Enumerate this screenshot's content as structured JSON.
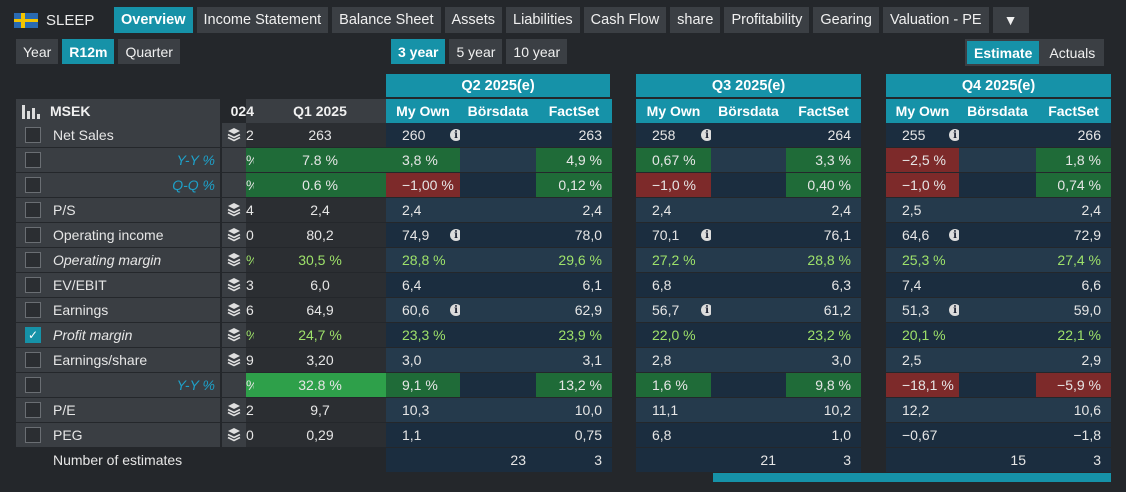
{
  "brand": {
    "name": "SLEEP",
    "flag_icon": "sweden-flag-icon"
  },
  "tabs": [
    "Overview",
    "Income Statement",
    "Balance Sheet",
    "Assets",
    "Liabilities",
    "Cash Flow",
    "share",
    "Profitability",
    "Gearing",
    "Valuation - PE"
  ],
  "more_label": "▼",
  "period_buttons": [
    "Year",
    "R12m",
    "Quarter"
  ],
  "range_buttons": [
    "3 year",
    "5 year",
    "10 year"
  ],
  "view_toggle": [
    "Estimate",
    "Actuals"
  ],
  "table": {
    "currency": "MSEK",
    "prev_col_partial": "024",
    "q1_header": "Q1 2025",
    "quarters": [
      {
        "title": "Q2 2025(e)",
        "sub": [
          "My Own",
          "Börsdata",
          "FactSet"
        ]
      },
      {
        "title": "Q3 2025(e)",
        "sub": [
          "My Own",
          "Börsdata",
          "FactSet"
        ]
      },
      {
        "title": "Q4 2025(e)",
        "sub": [
          "My Own",
          "Börsdata",
          "FactSet"
        ]
      }
    ],
    "rows": [
      {
        "label": "Net Sales",
        "checked": false,
        "prev": "2",
        "q1": "263",
        "q2": [
          "260",
          "",
          "263"
        ],
        "q3": [
          "258",
          "",
          "264"
        ],
        "q4": [
          "255",
          "",
          "266"
        ],
        "info": true
      },
      {
        "label": "Y-Y %",
        "sub": true,
        "prev": "%",
        "q1": "7.8 %",
        "q2": [
          "3,8 %",
          "",
          "4,9 %"
        ],
        "q3": [
          "0,67 %",
          "",
          "3,3 %"
        ],
        "q4": [
          "−2,5 %",
          "",
          "1,8 %"
        ]
      },
      {
        "label": "Q-Q %",
        "sub": true,
        "prev": "%",
        "q1": "0.6 %",
        "q2": [
          "−1,00 %",
          "",
          "0,12 %"
        ],
        "q3": [
          "−1,0 %",
          "",
          "0,40 %"
        ],
        "q4": [
          "−1,0 %",
          "",
          "0,74 %"
        ]
      },
      {
        "label": "P/S",
        "checked": false,
        "prev": "4",
        "q1": "2,4",
        "q2": [
          "2,4",
          "",
          "2,4"
        ],
        "q3": [
          "2,4",
          "",
          "2,4"
        ],
        "q4": [
          "2,5",
          "",
          "2,4"
        ]
      },
      {
        "label": "Operating income",
        "checked": false,
        "prev": "0",
        "q1": "80,2",
        "q2": [
          "74,9",
          "",
          "78,0"
        ],
        "q3": [
          "70,1",
          "",
          "76,1"
        ],
        "q4": [
          "64,6",
          "",
          "72,9"
        ],
        "info": true
      },
      {
        "label": "Operating margin",
        "italic": true,
        "checked": false,
        "prev": "%",
        "q1": "30,5 %",
        "q2": [
          "28,8 %",
          "",
          "29,6 %"
        ],
        "q3": [
          "27,2 %",
          "",
          "28,8 %"
        ],
        "q4": [
          "25,3 %",
          "",
          "27,4 %"
        ]
      },
      {
        "label": "EV/EBIT",
        "checked": false,
        "prev": "3",
        "q1": "6,0",
        "q2": [
          "6,4",
          "",
          "6,1"
        ],
        "q3": [
          "6,8",
          "",
          "6,3"
        ],
        "q4": [
          "7,4",
          "",
          "6,6"
        ]
      },
      {
        "label": "Earnings",
        "checked": false,
        "prev": "6",
        "q1": "64,9",
        "q2": [
          "60,6",
          "",
          "62,9"
        ],
        "q3": [
          "56,7",
          "",
          "61,2"
        ],
        "q4": [
          "51,3",
          "",
          "59,0"
        ],
        "info": true
      },
      {
        "label": "Profit margin",
        "italic": true,
        "checked": true,
        "prev": "%",
        "q1": "24,7 %",
        "q2": [
          "23,3 %",
          "",
          "23,9 %"
        ],
        "q3": [
          "22,0 %",
          "",
          "23,2 %"
        ],
        "q4": [
          "20,1 %",
          "",
          "22,1 %"
        ]
      },
      {
        "label": "Earnings/share",
        "checked": false,
        "prev": "9",
        "q1": "3,20",
        "q2": [
          "3,0",
          "",
          "3,1"
        ],
        "q3": [
          "2,8",
          "",
          "3,0"
        ],
        "q4": [
          "2,5",
          "",
          "2,9"
        ]
      },
      {
        "label": "Y-Y %",
        "sub": true,
        "prev": "%",
        "q1": "32.8 %",
        "q2": [
          "9,1 %",
          "",
          "13,2 %"
        ],
        "q3": [
          "1,6 %",
          "",
          "9,8 %"
        ],
        "q4": [
          "−18,1 %",
          "",
          "−5,9 %"
        ]
      },
      {
        "label": "P/E",
        "checked": false,
        "prev": "2",
        "q1": "9,7",
        "q2": [
          "10,3",
          "",
          "10,0"
        ],
        "q3": [
          "11,1",
          "",
          "10,2"
        ],
        "q4": [
          "12,2",
          "",
          "10,6"
        ]
      },
      {
        "label": "PEG",
        "checked": false,
        "prev": "0",
        "q1": "0,29",
        "q2": [
          "1,1",
          "",
          "0,75"
        ],
        "q3": [
          "6,8",
          "",
          "1,0"
        ],
        "q4": [
          "−0,67",
          "",
          "−1,8"
        ]
      },
      {
        "label": "Number of estimates",
        "noCheckbox": true,
        "prev": "",
        "q1": "",
        "q2": [
          "",
          "23",
          "3"
        ],
        "q3": [
          "",
          "21",
          "3"
        ],
        "q4": [
          "",
          "15",
          "3"
        ]
      }
    ]
  },
  "colors": {
    "accent": "#1692a8",
    "cell_dark": "#1b2d3f",
    "cell_light": "#253a4c",
    "green": "#1f6b38",
    "green_bright": "#2ea04a",
    "red": "#7d2a2a",
    "pct_text": "#9ee26a"
  }
}
